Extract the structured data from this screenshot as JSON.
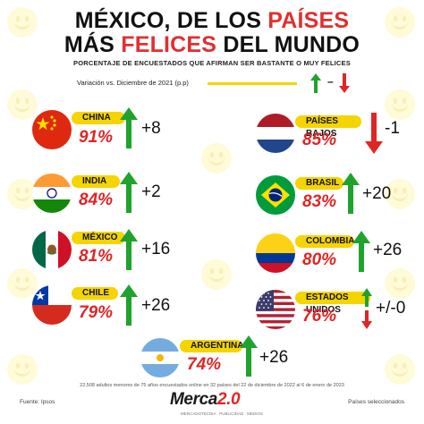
{
  "title": {
    "line1_black": "MÉXICO, DE LOS",
    "line1_red": "PAÍSES",
    "line2_black_1": "MÁS",
    "line2_red": "FELICES",
    "line2_black_2": "DEL MUNDO"
  },
  "subtitle": "PORCENTAJE DE ENCUESTADOS QUE AFIRMAN SER BASTANTE O MUY FELICES",
  "legend": {
    "label": "Variación vs. Diciembre de 2021 (p.p)",
    "separator": "–"
  },
  "countries": [
    {
      "name": "CHINA",
      "percent": "91%",
      "change": "+8",
      "direction": "up"
    },
    {
      "name": "INDIA",
      "percent": "84%",
      "change": "+2",
      "direction": "up"
    },
    {
      "name": "MÉXICO",
      "percent": "81%",
      "change": "+16",
      "direction": "up"
    },
    {
      "name": "CHILE",
      "percent": "79%",
      "change": "+26",
      "direction": "up"
    },
    {
      "name": "PAÍSES BAJOS",
      "percent": "85%",
      "change": "-1",
      "direction": "down"
    },
    {
      "name": "BRASIL",
      "percent": "83%",
      "change": "+20",
      "direction": "up"
    },
    {
      "name": "COLOMBIA",
      "percent": "80%",
      "change": "+26",
      "direction": "up"
    },
    {
      "name": "ESTADOS UNIDOS",
      "percent": "76%",
      "change": "+/-0",
      "direction": "both"
    },
    {
      "name": "ARGENTINA",
      "percent": "74%",
      "change": "+26",
      "direction": "up"
    }
  ],
  "footer": {
    "note": "22.508 adultos menores de 75 años encuestados online en 32 países del 22 de diciembre de 2022 al 6 de enero de 2023",
    "source": "Fuente: Ipsos",
    "selected": "Países seleccionados",
    "logo_main": "Merca",
    "logo_num": "2.0",
    "logo_tag": "MERCADOTECNIA · PUBLICIDAD · MEDIOS"
  },
  "colors": {
    "red": "#e02525",
    "green": "#1fa32c",
    "yellow": "#f5d400"
  }
}
